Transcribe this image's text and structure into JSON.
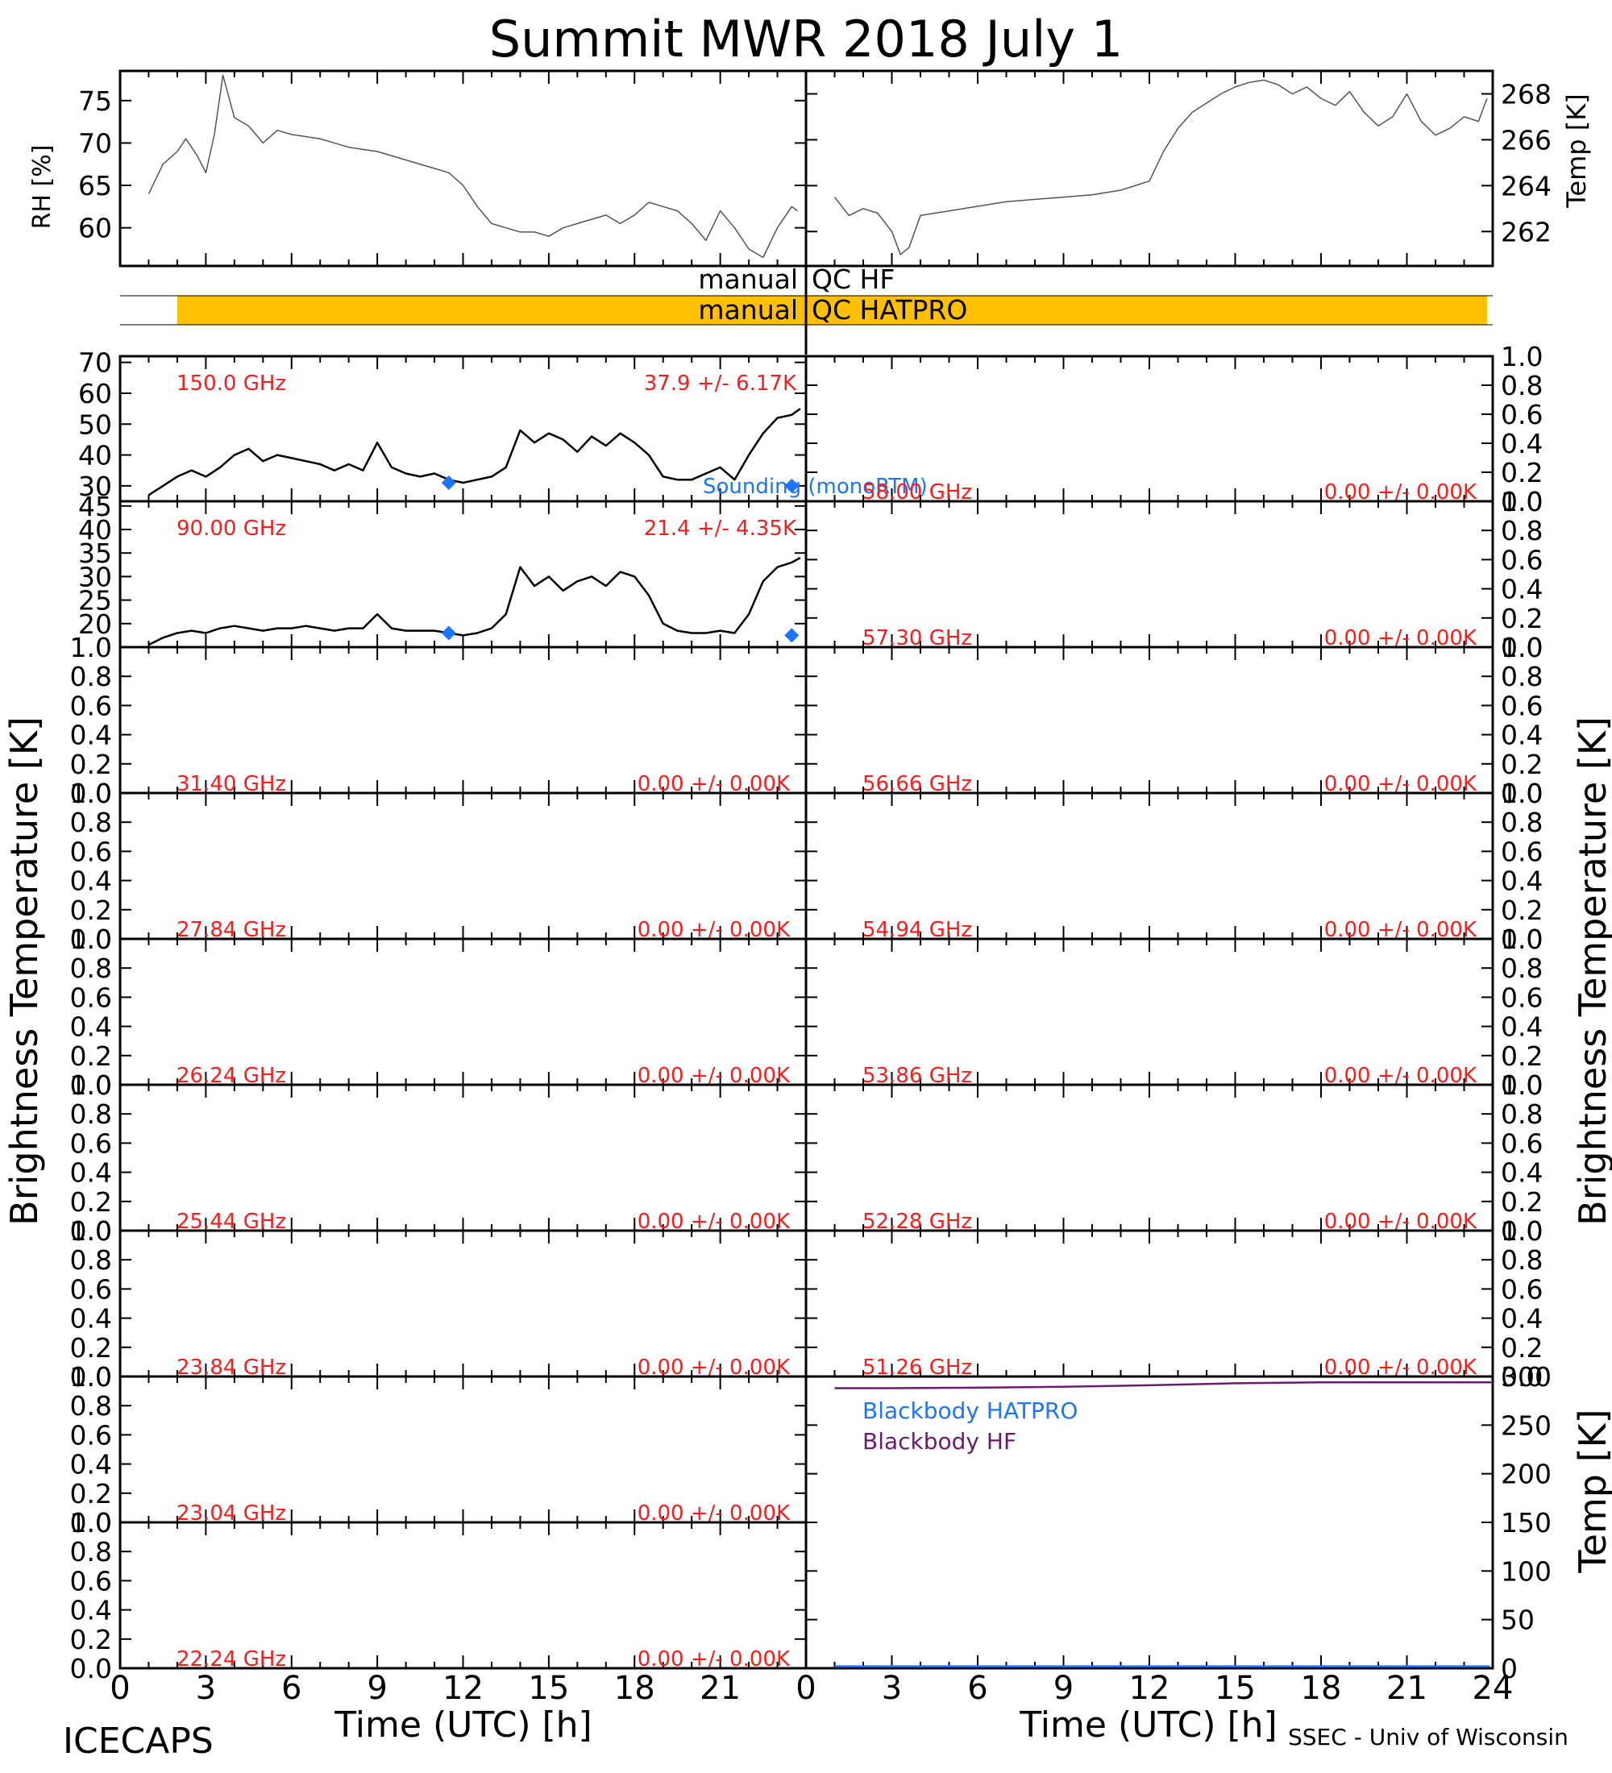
{
  "header": {
    "title": "Summit MWR 2018 July 1",
    "footer_left": "ICECAPS",
    "footer_right": "SSEC - Univ of Wisconsin"
  },
  "axes": {
    "x_title": "Time (UTC) [h]",
    "x_ticks": [
      "0",
      "3",
      "6",
      "9",
      "12",
      "15",
      "18",
      "21",
      "24"
    ],
    "x_range": [
      0,
      24
    ],
    "left_bt_title": "Brightness Temperature [K]",
    "right_bt_title": "Brightness Temperature [K]",
    "rh_title": "RH [%]",
    "temp_title": "Temp [K]",
    "bb_temp_title": "Temp [K]",
    "empty_ticks": [
      "0.0",
      "0.2",
      "0.4",
      "0.6",
      "0.8",
      "1.0"
    ]
  },
  "qc": {
    "hf_label_left": "manual",
    "hf_label_right": "QC HF",
    "hatpro_label_left": "manual",
    "hatpro_label_right": "QC HATPRO",
    "hatpro_bar": {
      "start": 1.0,
      "end": 23.9,
      "color": "#ffc000"
    }
  },
  "colors": {
    "red": "#ff1a1a",
    "blue": "#1a75ff",
    "purple": "#6a1b6a",
    "qc_bar": "#ffc000"
  },
  "chart_data": [
    {
      "type": "line",
      "id": "rh",
      "ylabel": "RH [%]",
      "ylim": [
        55.5,
        78.5
      ],
      "yticks": [
        "60",
        "65",
        "70",
        "75"
      ],
      "x": [
        1.0,
        1.5,
        2.0,
        2.3,
        2.7,
        3.0,
        3.3,
        3.6,
        4.0,
        4.5,
        5.0,
        5.5,
        6.0,
        7.0,
        8.0,
        9.0,
        10.0,
        11.0,
        11.5,
        12.0,
        12.5,
        13.0,
        13.5,
        14.0,
        14.5,
        15.0,
        15.5,
        16.0,
        16.5,
        17.0,
        17.5,
        18.0,
        18.5,
        19.0,
        19.5,
        20.0,
        20.5,
        21.0,
        21.5,
        22.0,
        22.5,
        23.0,
        23.5,
        23.7
      ],
      "y": [
        64.0,
        67.5,
        69.0,
        70.5,
        68.5,
        66.5,
        71.0,
        78.0,
        73.0,
        72.0,
        70.0,
        71.5,
        71.0,
        70.5,
        69.5,
        69.0,
        68.0,
        67.0,
        66.5,
        65.0,
        62.5,
        60.5,
        60.0,
        59.5,
        59.5,
        59.0,
        60.0,
        60.5,
        61.0,
        61.5,
        60.5,
        61.5,
        63.0,
        62.5,
        62.0,
        60.5,
        58.5,
        62.0,
        60.0,
        57.5,
        56.5,
        60.0,
        62.5,
        62.0
      ]
    },
    {
      "type": "line",
      "id": "temp",
      "ylabel": "Temp [K]",
      "ylim": [
        260.5,
        269.0
      ],
      "yticks": [
        "262",
        "264",
        "266",
        "268"
      ],
      "x": [
        1.0,
        1.5,
        2.0,
        2.5,
        3.0,
        3.3,
        3.6,
        4.0,
        4.5,
        5.0,
        6.0,
        7.0,
        8.0,
        9.0,
        10.0,
        11.0,
        11.5,
        12.0,
        12.5,
        13.0,
        13.5,
        14.0,
        14.5,
        15.0,
        15.5,
        16.0,
        16.5,
        17.0,
        17.5,
        18.0,
        18.5,
        19.0,
        19.5,
        20.0,
        20.5,
        21.0,
        21.5,
        22.0,
        22.5,
        23.0,
        23.5,
        23.8
      ],
      "y": [
        263.5,
        262.7,
        263.0,
        262.8,
        262.0,
        261.0,
        261.3,
        262.7,
        262.8,
        262.9,
        263.1,
        263.3,
        263.4,
        263.5,
        263.6,
        263.8,
        264.0,
        264.2,
        265.5,
        266.5,
        267.2,
        267.6,
        268.0,
        268.3,
        268.5,
        268.6,
        268.4,
        268.0,
        268.3,
        267.8,
        267.5,
        268.1,
        267.2,
        266.6,
        267.0,
        268.0,
        266.8,
        266.2,
        266.5,
        267.0,
        266.8,
        267.8
      ]
    },
    {
      "type": "line",
      "id": "tb150",
      "label": "150.0 GHz",
      "stat": "37.9 +/- 6.17K",
      "ylim": [
        25,
        72
      ],
      "yticks": [
        "30",
        "40",
        "50",
        "60",
        "70"
      ],
      "x": [
        1.0,
        1.5,
        2.0,
        2.5,
        3.0,
        3.5,
        4.0,
        4.5,
        5.0,
        5.5,
        6.0,
        6.5,
        7.0,
        7.5,
        8.0,
        8.5,
        9.0,
        9.5,
        10.0,
        10.5,
        11.0,
        11.5,
        12.0,
        12.5,
        13.0,
        13.5,
        14.0,
        14.5,
        15.0,
        15.5,
        16.0,
        16.5,
        17.0,
        17.5,
        18.0,
        18.5,
        19.0,
        19.5,
        20.0,
        20.5,
        21.0,
        21.5,
        22.0,
        22.5,
        23.0,
        23.5,
        23.8
      ],
      "y": [
        27,
        30,
        33,
        35,
        33,
        36,
        40,
        42,
        38,
        40,
        39,
        38,
        37,
        35,
        37,
        35,
        44,
        36,
        34,
        33,
        34,
        32,
        31,
        32,
        33,
        36,
        48,
        44,
        47,
        45,
        41,
        46,
        43,
        47,
        44,
        40,
        33,
        32,
        32,
        34,
        36,
        32,
        40,
        47,
        52,
        53,
        55
      ],
      "soundings": [
        {
          "x": 11.5,
          "y": 31
        },
        {
          "x": 23.5,
          "y": 30
        }
      ],
      "sounding_label": "Sounding (monoRTM)"
    },
    {
      "type": "line",
      "id": "tb90",
      "label": "90.00 GHz",
      "stat": "21.4 +/- 4.35K",
      "ylim": [
        15,
        46
      ],
      "yticks": [
        "20",
        "25",
        "30",
        "35",
        "40",
        "45"
      ],
      "x": [
        1.0,
        1.5,
        2.0,
        2.5,
        3.0,
        3.5,
        4.0,
        4.5,
        5.0,
        5.5,
        6.0,
        6.5,
        7.0,
        7.5,
        8.0,
        8.5,
        9.0,
        9.5,
        10.0,
        10.5,
        11.0,
        11.5,
        12.0,
        12.5,
        13.0,
        13.5,
        14.0,
        14.5,
        15.0,
        15.5,
        16.0,
        16.5,
        17.0,
        17.5,
        18.0,
        18.5,
        19.0,
        19.5,
        20.0,
        20.5,
        21.0,
        21.5,
        22.0,
        22.5,
        23.0,
        23.5,
        23.8
      ],
      "y": [
        15.5,
        17,
        18,
        18.5,
        18,
        19,
        19.5,
        19,
        18.5,
        19,
        19,
        19.5,
        19,
        18.5,
        19,
        19,
        22,
        19,
        18.5,
        18.5,
        18.5,
        18,
        17.5,
        18,
        19,
        22,
        32,
        28,
        30,
        27,
        29,
        30,
        28,
        31,
        30,
        26,
        20,
        18.5,
        18,
        18,
        18.5,
        18,
        22,
        29,
        32,
        33,
        34
      ],
      "soundings": [
        {
          "x": 11.5,
          "y": 18
        },
        {
          "x": 23.5,
          "y": 17.5
        }
      ]
    },
    {
      "type": "line",
      "id": "tb5800",
      "label": "58.00 GHz",
      "stat": "0.00 +/- 0.00K",
      "ylim": [
        0,
        1
      ]
    },
    {
      "type": "line",
      "id": "tb5730",
      "label": "57.30 GHz",
      "stat": "0.00 +/- 0.00K",
      "ylim": [
        0,
        1
      ]
    },
    {
      "type": "line",
      "id": "tb3140",
      "label": "31.40 GHz",
      "stat": "0.00 +/- 0.00K",
      "ylim": [
        0,
        1
      ]
    },
    {
      "type": "line",
      "id": "tb5666",
      "label": "56.66 GHz",
      "stat": "0.00 +/- 0.00K",
      "ylim": [
        0,
        1
      ]
    },
    {
      "type": "line",
      "id": "tb2784",
      "label": "27.84 GHz",
      "stat": "0.00 +/- 0.00K",
      "ylim": [
        0,
        1
      ]
    },
    {
      "type": "line",
      "id": "tb5494",
      "label": "54.94 GHz",
      "stat": "0.00 +/- 0.00K",
      "ylim": [
        0,
        1
      ]
    },
    {
      "type": "line",
      "id": "tb2624",
      "label": "26.24 GHz",
      "stat": "0.00 +/- 0.00K",
      "ylim": [
        0,
        1
      ]
    },
    {
      "type": "line",
      "id": "tb5386",
      "label": "53.86 GHz",
      "stat": "0.00 +/- 0.00K",
      "ylim": [
        0,
        1
      ]
    },
    {
      "type": "line",
      "id": "tb2544",
      "label": "25.44 GHz",
      "stat": "0.00 +/- 0.00K",
      "ylim": [
        0,
        1
      ]
    },
    {
      "type": "line",
      "id": "tb5228",
      "label": "52.28 GHz",
      "stat": "0.00 +/- 0.00K",
      "ylim": [
        0,
        1
      ]
    },
    {
      "type": "line",
      "id": "tb2384",
      "label": "23.84 GHz",
      "stat": "0.00 +/- 0.00K",
      "ylim": [
        0,
        1
      ]
    },
    {
      "type": "line",
      "id": "tb5126",
      "label": "51.26 GHz",
      "stat": "0.00 +/- 0.00K",
      "ylim": [
        0,
        1
      ]
    },
    {
      "type": "line",
      "id": "tb2304",
      "label": "23.04 GHz",
      "stat": "0.00 +/- 0.00K",
      "ylim": [
        0,
        1
      ]
    },
    {
      "type": "line",
      "id": "tb2224",
      "label": "22.24 GHz",
      "stat": "0.00 +/- 0.00K",
      "ylim": [
        0,
        1
      ]
    },
    {
      "type": "line",
      "id": "blackbody",
      "ylabel": "Temp [K]",
      "ylim": [
        0,
        300
      ],
      "yticks": [
        "0",
        "50",
        "100",
        "150",
        "200",
        "250",
        "300"
      ],
      "series": [
        {
          "name": "Blackbody HATPRO",
          "color": "#1a75ff",
          "x": [
            1.0,
            23.9
          ],
          "y": [
            2,
            2
          ]
        },
        {
          "name": "Blackbody HF",
          "color": "#6a1b6a",
          "x": [
            1.0,
            3.0,
            6.0,
            9.0,
            12.0,
            15.0,
            18.0,
            21.0,
            24.0
          ],
          "y": [
            288,
            288,
            288.5,
            289.5,
            291,
            293,
            294,
            294,
            294
          ]
        }
      ]
    }
  ]
}
